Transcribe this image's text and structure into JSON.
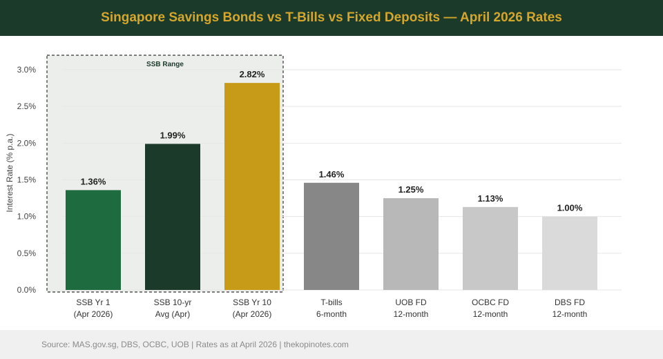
{
  "title": "Singapore Savings Bonds vs T-Bills vs Fixed Deposits — April 2026 Rates",
  "footer": "Source: MAS.gov.sg, DBS, OCBC, UOB | Rates as at April 2026 | thekopinotes.com",
  "chart_data": {
    "type": "bar",
    "ylabel": "Interest Rate (% p.a.)",
    "ylim": [
      0,
      3.0
    ],
    "yticks": [
      "0.0%",
      "0.5%",
      "1.0%",
      "1.5%",
      "2.0%",
      "2.5%",
      "3.0%"
    ],
    "grid": true,
    "categories": [
      [
        "SSB Yr 1",
        "(Apr 2026)"
      ],
      [
        "SSB 10-yr",
        "Avg (Apr)"
      ],
      [
        "SSB Yr 10",
        "(Apr 2026)"
      ],
      [
        "T-bills",
        "6-month"
      ],
      [
        "UOB FD",
        "12-month"
      ],
      [
        "OCBC FD",
        "12-month"
      ],
      [
        "DBS FD",
        "12-month"
      ]
    ],
    "values": [
      1.36,
      1.99,
      2.82,
      1.46,
      1.25,
      1.13,
      1.0
    ],
    "value_labels": [
      "1.36%",
      "1.99%",
      "2.82%",
      "1.46%",
      "1.25%",
      "1.13%",
      "1.00%"
    ],
    "colors": [
      "#1f6b40",
      "#1c3a2a",
      "#c79a17",
      "#878787",
      "#b8b8b8",
      "#c8c8c8",
      "#dadada"
    ],
    "annotation": {
      "label": "SSB Range",
      "covers": [
        0,
        2
      ]
    }
  }
}
